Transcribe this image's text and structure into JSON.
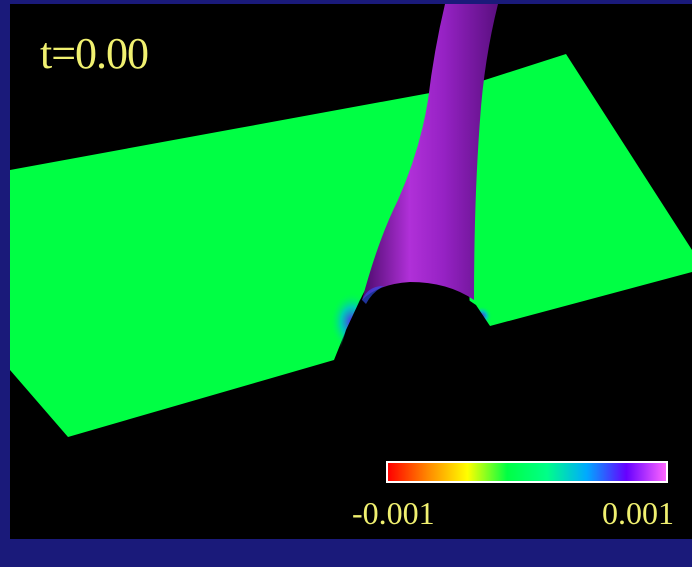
{
  "time_label": "t=0.00",
  "colorbar": {
    "min_label": "-0.001",
    "max_label": "0.001",
    "stops": [
      "#ff0000",
      "#ff8800",
      "#ffff00",
      "#00ff44",
      "#00ff88",
      "#00aaff",
      "#6600ff",
      "#ff66ff"
    ]
  },
  "colors": {
    "surface": "#00ff44",
    "tube": "#9922cc",
    "text": "#f0f070",
    "frame": "#1a1a7a"
  }
}
